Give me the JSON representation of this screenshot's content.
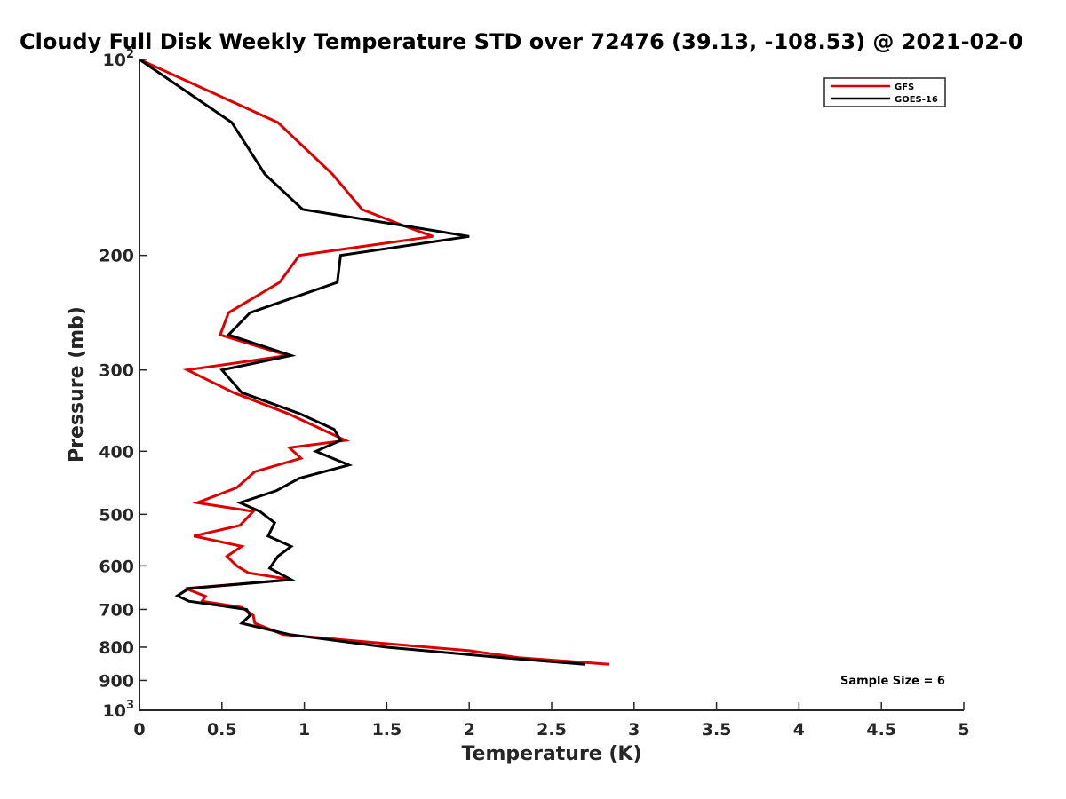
{
  "chart_data": {
    "type": "line",
    "title": "Cloudy Full Disk Weekly Temperature STD over 72476 (39.13, -108.53) @ 2021-02-0",
    "xlabel": "Temperature (K)",
    "ylabel": "Pressure (mb)",
    "xlim": [
      0,
      5
    ],
    "ylim": [
      100,
      1000
    ],
    "yscale": "log",
    "yaxis_reversed": true,
    "x_ticks": [
      0,
      0.5,
      1,
      1.5,
      2,
      2.5,
      3,
      3.5,
      4,
      4.5,
      5
    ],
    "x_tick_labels": [
      "0",
      "0.5",
      "1",
      "1.5",
      "2",
      "2.5",
      "3",
      "3.5",
      "4",
      "4.5",
      "5"
    ],
    "y_ticks": [
      100,
      200,
      300,
      400,
      500,
      600,
      700,
      800,
      900,
      1000
    ],
    "y_tick_labels": [
      "10²",
      "200",
      "300",
      "400",
      "500",
      "600",
      "700",
      "800",
      "900",
      "10³"
    ],
    "grid": false,
    "legend_position": "top-right",
    "series": [
      {
        "name": "GFS",
        "color": "#dd0000",
        "points": [
          [
            0.0,
            100
          ],
          [
            0.84,
            125
          ],
          [
            1.17,
            150
          ],
          [
            1.35,
            170
          ],
          [
            1.6,
            180
          ],
          [
            1.78,
            187
          ],
          [
            0.97,
            200
          ],
          [
            0.85,
            220
          ],
          [
            0.54,
            245
          ],
          [
            0.49,
            265
          ],
          [
            0.9,
            285
          ],
          [
            0.29,
            300
          ],
          [
            0.57,
            325
          ],
          [
            0.9,
            350
          ],
          [
            1.25,
            385
          ],
          [
            0.91,
            395
          ],
          [
            0.98,
            410
          ],
          [
            0.7,
            430
          ],
          [
            0.59,
            455
          ],
          [
            0.35,
            480
          ],
          [
            0.69,
            495
          ],
          [
            0.61,
            520
          ],
          [
            0.33,
            540
          ],
          [
            0.62,
            560
          ],
          [
            0.53,
            580
          ],
          [
            0.59,
            600
          ],
          [
            0.66,
            615
          ],
          [
            0.92,
            630
          ],
          [
            0.28,
            650
          ],
          [
            0.4,
            668
          ],
          [
            0.38,
            680
          ],
          [
            0.62,
            695
          ],
          [
            0.69,
            715
          ],
          [
            0.7,
            735
          ],
          [
            0.87,
            765
          ],
          [
            1.5,
            790
          ],
          [
            2.0,
            810
          ],
          [
            2.3,
            830
          ],
          [
            2.85,
            850
          ]
        ]
      },
      {
        "name": "GOES-16",
        "color": "#000000",
        "points": [
          [
            0.0,
            100
          ],
          [
            0.56,
            125
          ],
          [
            0.76,
            150
          ],
          [
            0.99,
            170
          ],
          [
            1.6,
            180
          ],
          [
            2.0,
            187
          ],
          [
            1.22,
            200
          ],
          [
            1.2,
            220
          ],
          [
            0.67,
            245
          ],
          [
            0.54,
            265
          ],
          [
            0.92,
            285
          ],
          [
            0.5,
            300
          ],
          [
            0.62,
            325
          ],
          [
            0.97,
            350
          ],
          [
            1.18,
            370
          ],
          [
            1.22,
            385
          ],
          [
            1.07,
            400
          ],
          [
            1.27,
            420
          ],
          [
            0.97,
            440
          ],
          [
            0.83,
            460
          ],
          [
            0.61,
            480
          ],
          [
            0.73,
            495
          ],
          [
            0.82,
            515
          ],
          [
            0.78,
            540
          ],
          [
            0.92,
            560
          ],
          [
            0.84,
            580
          ],
          [
            0.79,
            605
          ],
          [
            0.92,
            630
          ],
          [
            0.3,
            650
          ],
          [
            0.23,
            667
          ],
          [
            0.3,
            680
          ],
          [
            0.65,
            700
          ],
          [
            0.67,
            715
          ],
          [
            0.62,
            735
          ],
          [
            0.91,
            765
          ],
          [
            1.5,
            800
          ],
          [
            2.2,
            830
          ],
          [
            2.7,
            850
          ]
        ]
      }
    ],
    "annotations": [
      "Sample Size = 6"
    ]
  }
}
